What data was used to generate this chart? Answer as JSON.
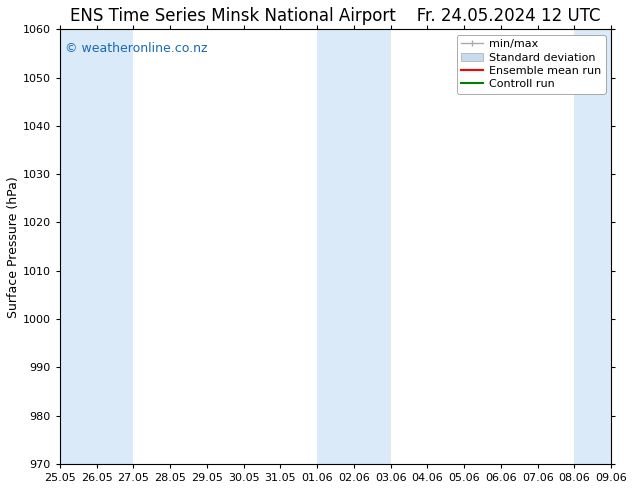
{
  "title_left": "ENS Time Series Minsk National Airport",
  "title_right": "Fr. 24.05.2024 12 UTC",
  "ylabel": "Surface Pressure (hPa)",
  "ylim": [
    970,
    1060
  ],
  "yticks": [
    970,
    980,
    990,
    1000,
    1010,
    1020,
    1030,
    1040,
    1050,
    1060
  ],
  "xtick_labels": [
    "25.05",
    "26.05",
    "27.05",
    "28.05",
    "29.05",
    "30.05",
    "31.05",
    "01.06",
    "02.06",
    "03.06",
    "04.06",
    "05.06",
    "06.06",
    "07.06",
    "08.06",
    "09.06"
  ],
  "x_values": [
    0,
    1,
    2,
    3,
    4,
    5,
    6,
    7,
    8,
    9,
    10,
    11,
    12,
    13,
    14,
    15
  ],
  "shade_ranges": [
    [
      0,
      1
    ],
    [
      1,
      2
    ],
    [
      7,
      8
    ],
    [
      8,
      9
    ],
    [
      14,
      15
    ],
    [
      15,
      16
    ]
  ],
  "shade_color": "#daeaf8",
  "background_color": "#ffffff",
  "watermark_text": "© weatheronline.co.nz",
  "watermark_color": "#1a6ab5",
  "legend_minmax_color": "#aaaaaa",
  "legend_stddev_color": "#c8daf0",
  "legend_mean_color": "#ff0000",
  "legend_control_color": "#008000",
  "title_fontsize": 12,
  "axis_label_fontsize": 9,
  "tick_fontsize": 8,
  "legend_fontsize": 8,
  "watermark_fontsize": 9
}
